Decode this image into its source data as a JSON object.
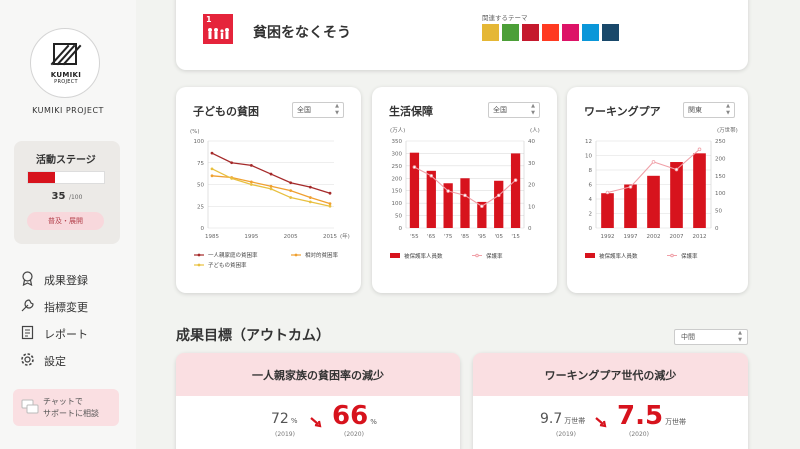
{
  "sidebar": {
    "logo_text": "KUMIKI",
    "logo_sub": "PROJECT",
    "project_name": "KUMIKI PROJECT",
    "stage": {
      "title": "活動ステージ",
      "value": "35",
      "max": "/100",
      "progress": 0.35,
      "button": "普及・展開"
    },
    "menu": [
      {
        "label": "成果登録",
        "icon": "award-icon"
      },
      {
        "label": "指標変更",
        "icon": "wrench-icon"
      },
      {
        "label": "レポート",
        "icon": "report-icon"
      },
      {
        "label": "設定",
        "icon": "gear-icon"
      }
    ],
    "chat": {
      "line1": "チャットで",
      "line2": "サポートに相談",
      "icon": "chat-icon"
    }
  },
  "theme": {
    "goal_number": "1",
    "goal_title": "貧困をなくそう",
    "related_label": "関連するテーマ",
    "related_goals": [
      {
        "color": "#e5b735",
        "icon": "sdg-2-icon"
      },
      {
        "color": "#4c9f38",
        "icon": "sdg-3-icon"
      },
      {
        "color": "#c5192d",
        "icon": "sdg-4-icon"
      },
      {
        "color": "#ff3a21",
        "icon": "sdg-5-icon"
      },
      {
        "color": "#dd1367",
        "icon": "sdg-10-icon"
      },
      {
        "color": "#0a97d9",
        "icon": "sdg-14-icon"
      },
      {
        "color": "#19486a",
        "icon": "sdg-17-icon"
      }
    ]
  },
  "panels": {
    "child": {
      "title": "子どもの貧困",
      "select": "全国"
    },
    "welfare": {
      "title": "生活保障",
      "select": "全国"
    },
    "working": {
      "title": "ワーキングプア",
      "select": "関東"
    }
  },
  "chart_data": [
    {
      "type": "line",
      "title": "子どもの貧困",
      "ylabel": "(%)",
      "xlabel": "(年)",
      "ylim": [
        0,
        100
      ],
      "yticks": [
        0,
        25,
        50,
        75,
        100
      ],
      "xticks": [
        "1985",
        "1995",
        "2005",
        "2015"
      ],
      "x": [
        1985,
        1990,
        1995,
        2000,
        2005,
        2010,
        2015
      ],
      "series": [
        {
          "name": "一人親家庭の貧困率",
          "color": "#a52a2a",
          "values": [
            86,
            75,
            72,
            62,
            52,
            47,
            40
          ]
        },
        {
          "name": "相対的貧困率",
          "color": "#f0a030",
          "values": [
            60,
            58,
            53,
            48,
            43,
            35,
            28
          ]
        },
        {
          "name": "子どもの貧困率",
          "color": "#e8c040",
          "values": [
            68,
            57,
            50,
            45,
            35,
            30,
            25
          ]
        }
      ]
    },
    {
      "type": "bar",
      "title": "生活保障",
      "ylabel": "(万人)",
      "ylabel2": "(人)",
      "yticks": [
        0,
        50,
        100,
        150,
        200,
        250,
        300,
        350
      ],
      "ylim": [
        0,
        350
      ],
      "yticks2": [
        0,
        10,
        20,
        30,
        40
      ],
      "ylim2": [
        0,
        40
      ],
      "categories": [
        "'55",
        "'65",
        "'75",
        "'85",
        "'95",
        "'05",
        "'15"
      ],
      "series": [
        {
          "name": "被保護率人員数",
          "color": "#d7131d",
          "values": [
            303,
            230,
            180,
            200,
            105,
            190,
            300
          ]
        },
        {
          "name": "保護率",
          "color": "#f0a0a8",
          "values": [
            28,
            24,
            17,
            15,
            10,
            15,
            22
          ]
        }
      ]
    },
    {
      "type": "bar",
      "title": "ワーキングプア",
      "ylabel2": "(万世帯)",
      "yticks": [
        0,
        2,
        4,
        6,
        8,
        10,
        12
      ],
      "ylim": [
        0,
        12
      ],
      "yticks2": [
        0,
        50,
        100,
        150,
        200,
        250
      ],
      "ylim2": [
        0,
        250
      ],
      "categories": [
        "1992",
        "1997",
        "2002",
        "2007",
        "2012"
      ],
      "series": [
        {
          "name": "被保護率人員数",
          "color": "#d7131d",
          "values": [
            4.8,
            6.0,
            7.2,
            9.1,
            10.3
          ]
        },
        {
          "name": "保護率",
          "color": "#f0a0a8",
          "values": [
            102,
            118,
            190,
            168,
            226
          ]
        }
      ]
    }
  ],
  "outcomes": {
    "title": "成果目標（アウトカム）",
    "select": "中間",
    "items": [
      {
        "title": "一人親家族の貧困率の減少",
        "before": "72",
        "before_unit": "%",
        "before_year": "(2019)",
        "after": "66",
        "after_unit": "%",
        "after_year": "(2020)"
      },
      {
        "title": "ワーキングプア世代の減少",
        "before": "9.7",
        "before_unit": "万世帯",
        "before_year": "(2019)",
        "after": "7.5",
        "after_unit": "万世帯",
        "after_year": "(2020)"
      }
    ]
  }
}
